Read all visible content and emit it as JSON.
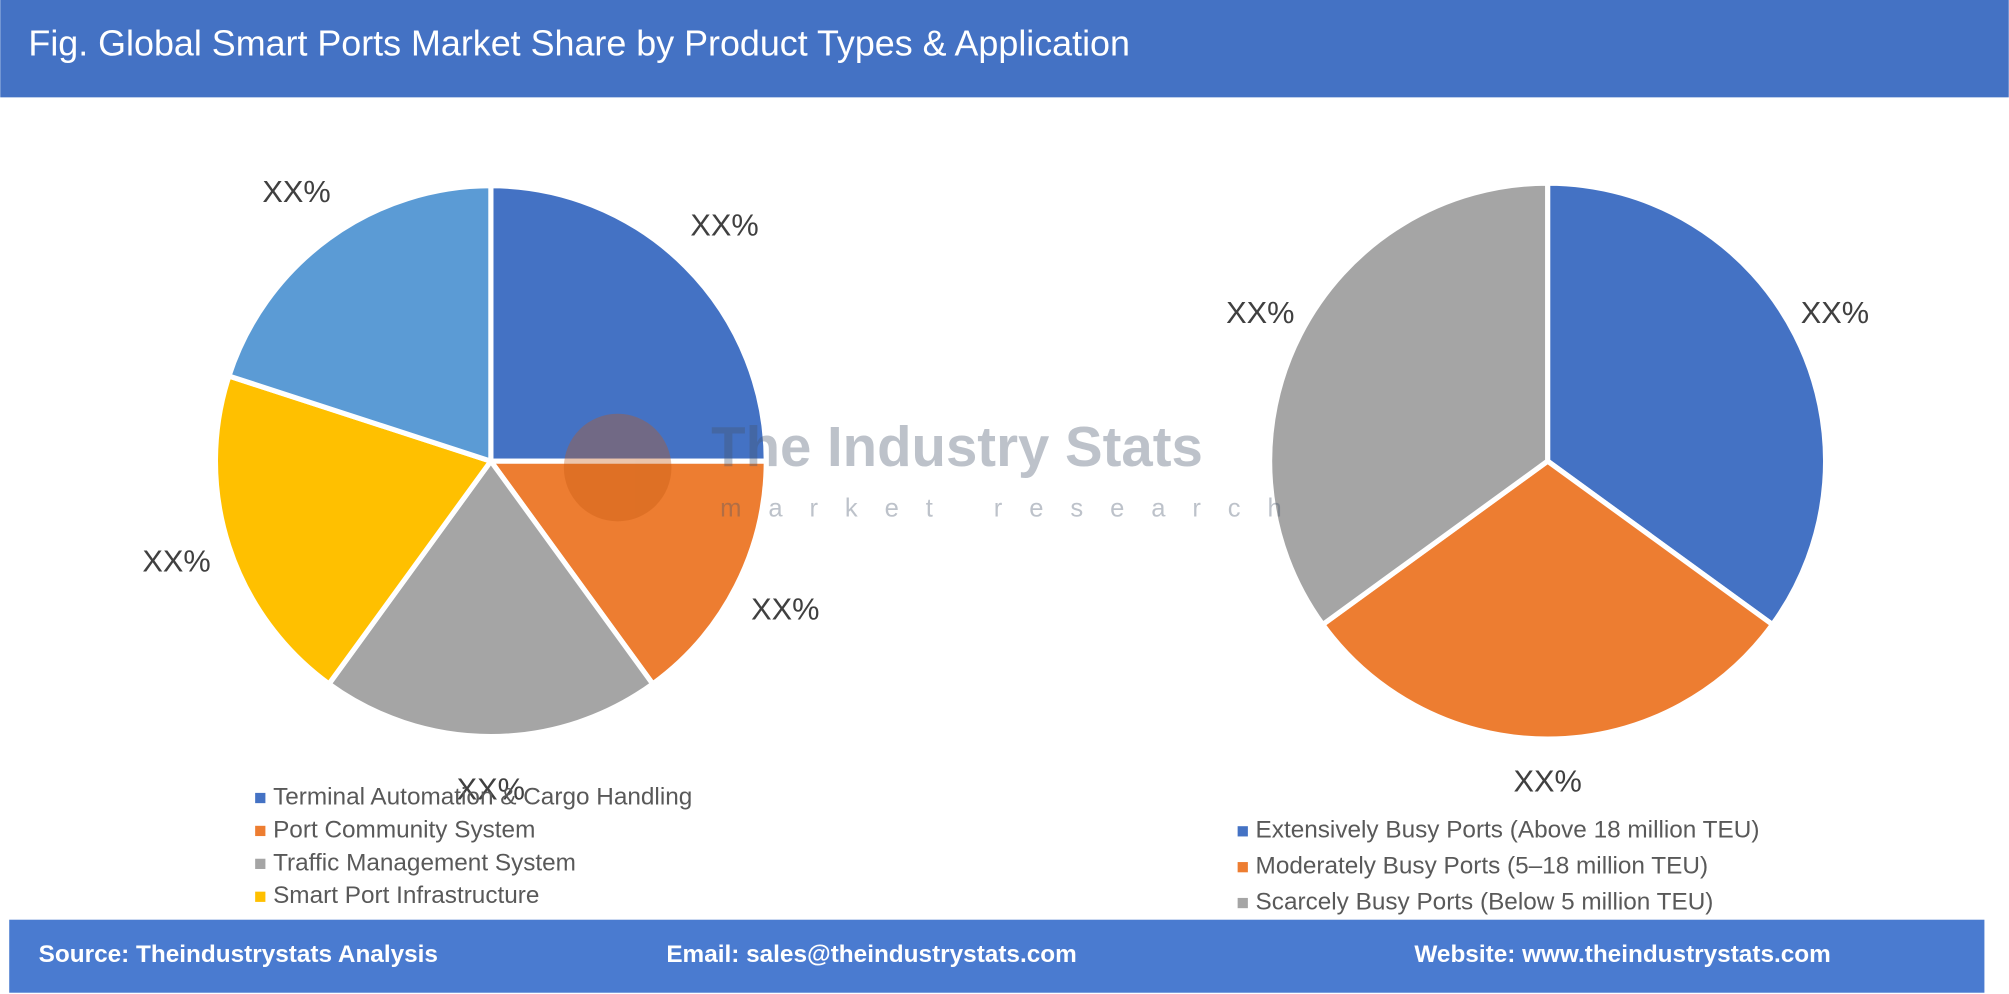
{
  "header": {
    "title": "Fig. Global Smart Ports Market Share by Product Types & Application"
  },
  "chart_data": [
    {
      "type": "pie",
      "categories": [
        "Terminal Automation & Cargo Handling",
        "Port Community System",
        "Traffic Management System",
        "Smart Port Infrastructure",
        null
      ],
      "values": [
        25,
        15,
        20,
        20,
        20
      ],
      "value_labels": [
        "XX%",
        "XX%",
        "XX%",
        "XX%",
        "XX%"
      ],
      "colors": [
        "#4472c4",
        "#ed7d31",
        "#a5a5a5",
        "#ffc000",
        "#5b9bd5"
      ]
    },
    {
      "type": "pie",
      "categories": [
        "Extensively Busy Ports (Above 18 million TEU)",
        "Moderately Busy Ports (5–18 million TEU)",
        "Scarcely Busy Ports (Below 5 million TEU)"
      ],
      "values": [
        35,
        30,
        35
      ],
      "value_labels": [
        "XX%",
        "XX%",
        "XX%"
      ],
      "colors": [
        "#4472c4",
        "#ed7d31",
        "#a5a5a5"
      ]
    }
  ],
  "watermark": {
    "name": "The Industry Stats",
    "tagline": "market research"
  },
  "footer": {
    "source": "Source: Theindustrystats Analysis",
    "email": "Email: sales@theindustrystats.com",
    "website": "Website: www.theindustrystats.com"
  }
}
